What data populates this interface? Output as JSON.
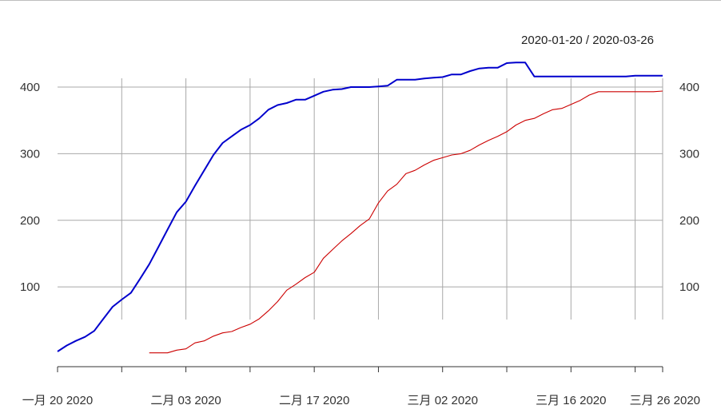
{
  "chart_data": {
    "type": "line",
    "date_range_label": "2020-01-20 / 2020-03-26",
    "x_range": [
      "2020-01-20",
      "2020-03-26"
    ],
    "ylim": [
      0,
      420
    ],
    "y_ticks": [
      100,
      200,
      300,
      400
    ],
    "y_tick_labels": [
      "100",
      "200",
      "300",
      "400"
    ],
    "x_ticks": [
      {
        "date": "2020-01-20",
        "label": "一月 20 2020"
      },
      {
        "date": "2020-01-27",
        "label": ""
      },
      {
        "date": "2020-02-03",
        "label": "二月 03 2020"
      },
      {
        "date": "2020-02-10",
        "label": ""
      },
      {
        "date": "2020-02-17",
        "label": "二月 17 2020"
      },
      {
        "date": "2020-02-24",
        "label": ""
      },
      {
        "date": "2020-03-02",
        "label": "三月 02 2020"
      },
      {
        "date": "2020-03-09",
        "label": ""
      },
      {
        "date": "2020-03-16",
        "label": "三月 16 2020"
      },
      {
        "date": "2020-03-23",
        "label": ""
      },
      {
        "date": "2020-03-26",
        "label": "三月 26 2020"
      }
    ],
    "grid": true,
    "series": [
      {
        "color": "#0000cc",
        "points": [
          [
            "2020-01-20",
            3
          ],
          [
            "2020-01-21",
            12
          ],
          [
            "2020-01-22",
            19
          ],
          [
            "2020-01-23",
            25
          ],
          [
            "2020-01-24",
            34
          ],
          [
            "2020-01-25",
            52
          ],
          [
            "2020-01-26",
            70
          ],
          [
            "2020-01-27",
            81
          ],
          [
            "2020-01-28",
            91
          ],
          [
            "2020-01-29",
            112
          ],
          [
            "2020-01-30",
            134
          ],
          [
            "2020-01-31",
            160
          ],
          [
            "2020-02-01",
            186
          ],
          [
            "2020-02-02",
            212
          ],
          [
            "2020-02-03",
            228
          ],
          [
            "2020-02-04",
            252
          ],
          [
            "2020-02-05",
            275
          ],
          [
            "2020-02-06",
            298
          ],
          [
            "2020-02-07",
            316
          ],
          [
            "2020-02-08",
            326
          ],
          [
            "2020-02-09",
            336
          ],
          [
            "2020-02-10",
            343
          ],
          [
            "2020-02-11",
            353
          ],
          [
            "2020-02-12",
            366
          ],
          [
            "2020-02-13",
            373
          ],
          [
            "2020-02-14",
            376
          ],
          [
            "2020-02-15",
            381
          ],
          [
            "2020-02-16",
            381
          ],
          [
            "2020-02-17",
            387
          ],
          [
            "2020-02-18",
            393
          ],
          [
            "2020-02-19",
            396
          ],
          [
            "2020-02-20",
            397
          ],
          [
            "2020-02-21",
            400
          ],
          [
            "2020-02-22",
            400
          ],
          [
            "2020-02-23",
            400
          ],
          [
            "2020-02-24",
            401
          ],
          [
            "2020-02-25",
            402
          ],
          [
            "2020-02-26",
            411
          ],
          [
            "2020-02-27",
            411
          ],
          [
            "2020-02-28",
            411
          ],
          [
            "2020-02-29",
            413
          ],
          [
            "2020-03-01",
            414
          ],
          [
            "2020-03-02",
            415
          ],
          [
            "2020-03-03",
            419
          ],
          [
            "2020-03-04",
            419
          ],
          [
            "2020-03-05",
            424
          ],
          [
            "2020-03-06",
            428
          ],
          [
            "2020-03-07",
            429
          ],
          [
            "2020-03-08",
            429
          ],
          [
            "2020-03-09",
            436
          ],
          [
            "2020-03-10",
            437
          ],
          [
            "2020-03-11",
            437
          ],
          [
            "2020-03-12",
            416
          ],
          [
            "2020-03-13",
            416
          ],
          [
            "2020-03-14",
            416
          ],
          [
            "2020-03-15",
            416
          ],
          [
            "2020-03-16",
            416
          ],
          [
            "2020-03-17",
            416
          ],
          [
            "2020-03-18",
            416
          ],
          [
            "2020-03-19",
            416
          ],
          [
            "2020-03-20",
            416
          ],
          [
            "2020-03-21",
            416
          ],
          [
            "2020-03-22",
            416
          ],
          [
            "2020-03-23",
            417
          ],
          [
            "2020-03-24",
            417
          ],
          [
            "2020-03-25",
            417
          ],
          [
            "2020-03-26",
            417
          ]
        ]
      },
      {
        "color": "#cc0000",
        "points": [
          [
            "2020-01-30",
            1
          ],
          [
            "2020-01-31",
            1
          ],
          [
            "2020-02-01",
            1
          ],
          [
            "2020-02-02",
            5
          ],
          [
            "2020-02-03",
            7
          ],
          [
            "2020-02-04",
            16
          ],
          [
            "2020-02-05",
            19
          ],
          [
            "2020-02-06",
            26
          ],
          [
            "2020-02-07",
            31
          ],
          [
            "2020-02-08",
            33
          ],
          [
            "2020-02-09",
            39
          ],
          [
            "2020-02-10",
            44
          ],
          [
            "2020-02-11",
            52
          ],
          [
            "2020-02-12",
            64
          ],
          [
            "2020-02-13",
            78
          ],
          [
            "2020-02-14",
            95
          ],
          [
            "2020-02-15",
            104
          ],
          [
            "2020-02-16",
            114
          ],
          [
            "2020-02-17",
            122
          ],
          [
            "2020-02-18",
            143
          ],
          [
            "2020-02-19",
            156
          ],
          [
            "2020-02-20",
            169
          ],
          [
            "2020-02-21",
            180
          ],
          [
            "2020-02-22",
            192
          ],
          [
            "2020-02-23",
            202
          ],
          [
            "2020-02-24",
            226
          ],
          [
            "2020-02-25",
            244
          ],
          [
            "2020-02-26",
            254
          ],
          [
            "2020-02-27",
            270
          ],
          [
            "2020-02-28",
            275
          ],
          [
            "2020-02-29",
            283
          ],
          [
            "2020-03-01",
            290
          ],
          [
            "2020-03-02",
            294
          ],
          [
            "2020-03-03",
            298
          ],
          [
            "2020-03-04",
            300
          ],
          [
            "2020-03-05",
            305
          ],
          [
            "2020-03-06",
            313
          ],
          [
            "2020-03-07",
            320
          ],
          [
            "2020-03-08",
            326
          ],
          [
            "2020-03-09",
            333
          ],
          [
            "2020-03-10",
            343
          ],
          [
            "2020-03-11",
            350
          ],
          [
            "2020-03-12",
            353
          ],
          [
            "2020-03-13",
            360
          ],
          [
            "2020-03-14",
            366
          ],
          [
            "2020-03-15",
            368
          ],
          [
            "2020-03-16",
            374
          ],
          [
            "2020-03-17",
            380
          ],
          [
            "2020-03-18",
            388
          ],
          [
            "2020-03-19",
            393
          ],
          [
            "2020-03-20",
            393
          ],
          [
            "2020-03-21",
            393
          ],
          [
            "2020-03-22",
            393
          ],
          [
            "2020-03-23",
            393
          ],
          [
            "2020-03-24",
            393
          ],
          [
            "2020-03-25",
            393
          ],
          [
            "2020-03-26",
            394
          ]
        ]
      }
    ]
  }
}
